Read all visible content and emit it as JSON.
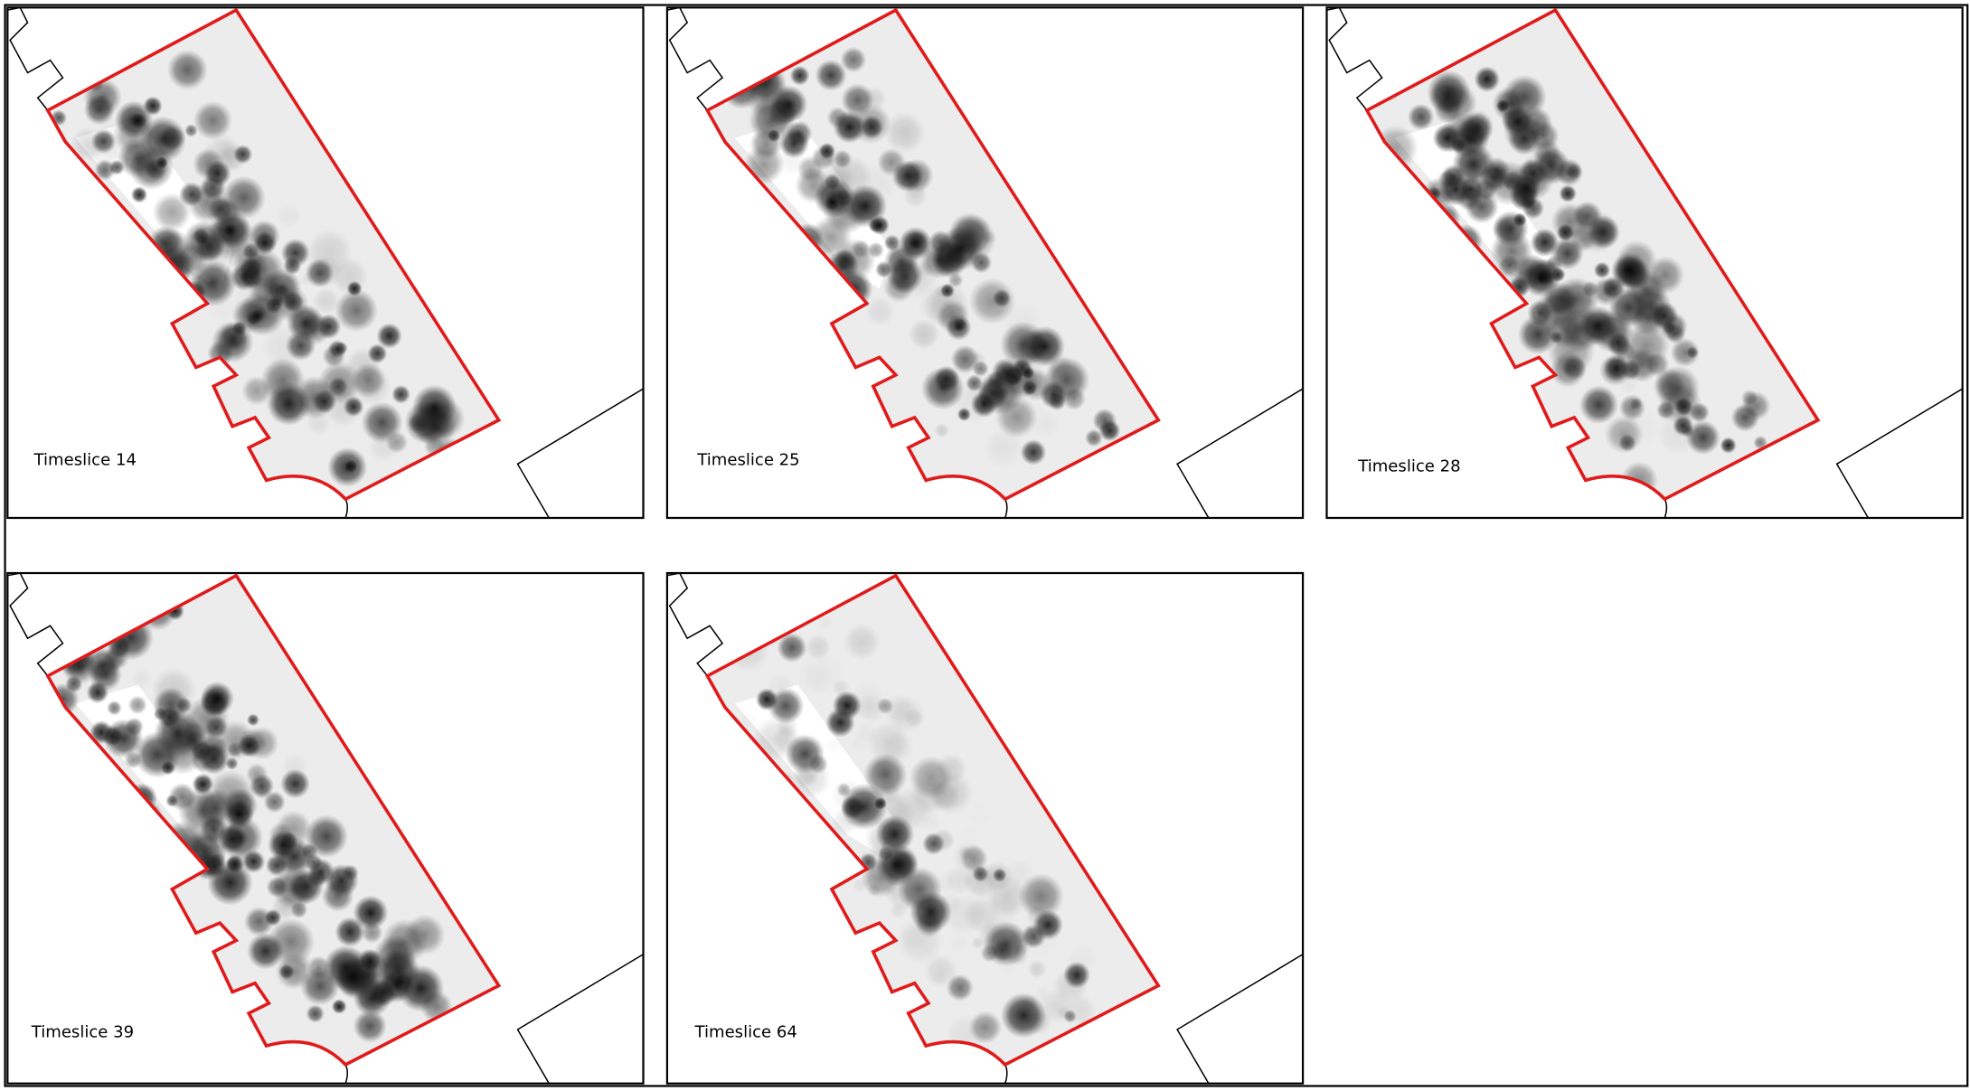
{
  "panels": [
    {
      "label": "Timeslice 14"
    },
    {
      "label": "Timeslice 25"
    },
    {
      "label": "Timeslice 28"
    },
    {
      "label": "Timeslice 39"
    },
    {
      "label": "Timeslice 64"
    }
  ]
}
